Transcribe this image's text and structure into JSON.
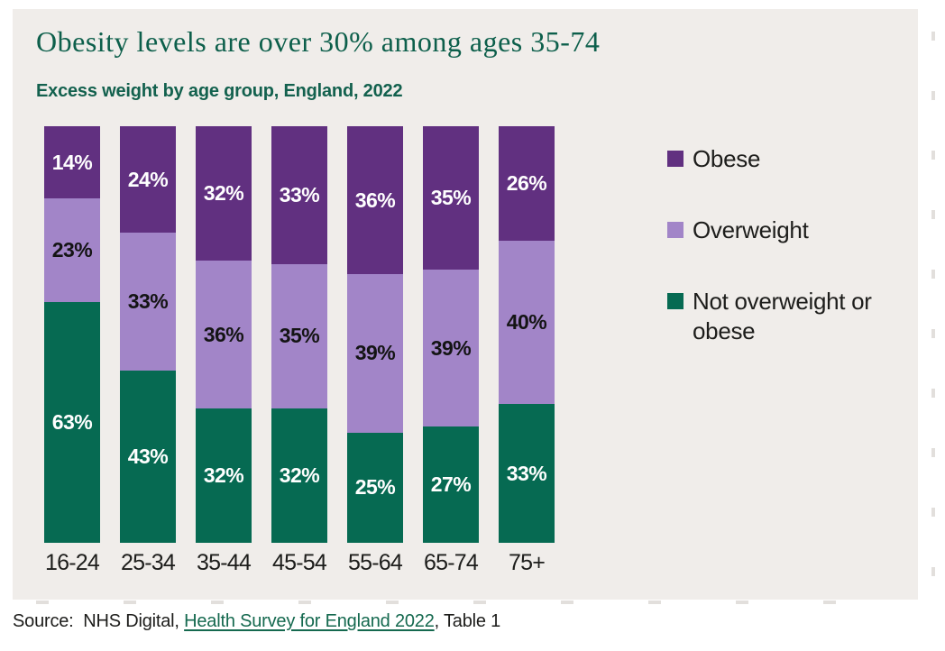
{
  "title": "Obesity levels are over 30% among ages 35-74",
  "subtitle": "Excess weight by age group, England, 2022",
  "source": {
    "prefix": "Source:  NHS Digital, ",
    "link_text": "Health Survey for England 2022",
    "suffix": ", Table 1"
  },
  "colors": {
    "panel_background": "#f0edea",
    "page_background": "#ffffff",
    "title_green": "#0d5f4b",
    "subtitle_green": "#13614e",
    "link_green": "#15694f",
    "text_black": "#1d1d1b",
    "obese_purple": "#613080",
    "overweight_lilac": "#a285c8",
    "not_overweight_green": "#066a52"
  },
  "chart_data": {
    "type": "bar",
    "stacked": true,
    "normalized_to_100": true,
    "title": "Obesity levels are over 30% among ages 35-74",
    "subtitle": "Excess weight by age group, England, 2022",
    "xlabel": "",
    "ylabel": "",
    "value_suffix": "%",
    "legend_position": "right",
    "grid": false,
    "categories": [
      "16-24",
      "25-34",
      "35-44",
      "45-54",
      "55-64",
      "65-74",
      "75+"
    ],
    "series": [
      {
        "name": "Obese",
        "color": "#613080",
        "label_color": "#ffffff",
        "values": [
          14,
          24,
          32,
          33,
          36,
          35,
          26
        ]
      },
      {
        "name": "Overweight",
        "color": "#a285c8",
        "label_color": "#141414",
        "values": [
          23,
          33,
          36,
          35,
          39,
          39,
          40
        ]
      },
      {
        "name": "Not overweight or obese",
        "color": "#066a52",
        "label_color": "#ffffff",
        "values": [
          63,
          43,
          32,
          32,
          25,
          27,
          33
        ]
      }
    ]
  }
}
